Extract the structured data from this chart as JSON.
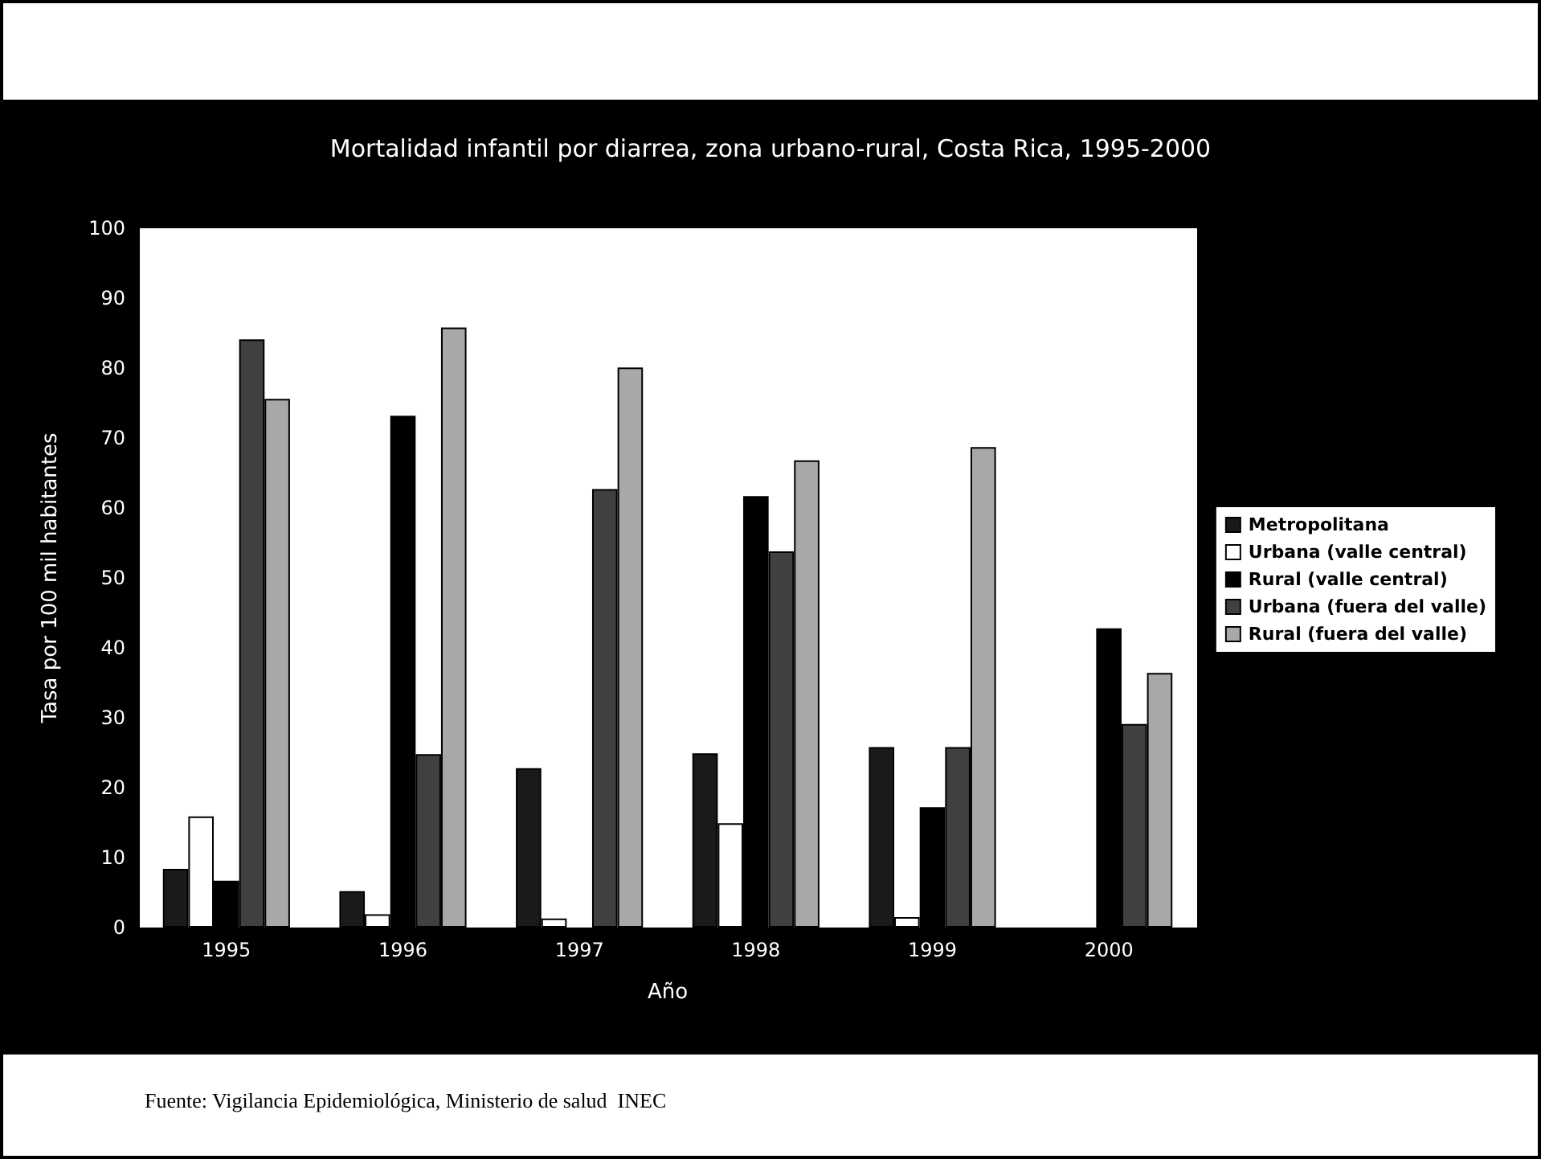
{
  "chart_data": {
    "type": "bar",
    "title": "Mortalidad infantil por diarrea, zona urbano-rural, Costa Rica, 1995-2000",
    "xlabel": "Año",
    "ylabel": "Tasa por 100 mil habitantes",
    "annotations": [
      "Fuente: Vigilancia Epidemiológica, Ministerio de salud  INEC"
    ],
    "categories": [
      "1995",
      "1996",
      "1997",
      "1998",
      "1999",
      "2000"
    ],
    "series": [
      {
        "name": "Metropolitana",
        "color": "#1a1a1a",
        "values": [
          8.4,
          5.2,
          22.8,
          24.9,
          25.8,
          0
        ]
      },
      {
        "name": "Urbana (valle central)",
        "color": "#ffffff",
        "values": [
          15.9,
          1.9,
          1.3,
          14.9,
          1.5,
          0
        ]
      },
      {
        "name": "Rural (valle central)",
        "color": "#000000",
        "values": [
          6.7,
          73.2,
          0,
          61.7,
          17.2,
          42.8
        ]
      },
      {
        "name": "Urbana (fuera del valle)",
        "color": "#404040",
        "values": [
          84.1,
          24.8,
          62.7,
          53.8,
          25.8,
          29.1
        ]
      },
      {
        "name": "Rural (fuera del valle)",
        "color": "#a8a8a8",
        "values": [
          75.6,
          85.8,
          80.1,
          66.8,
          68.7,
          36.4
        ]
      }
    ],
    "ylim": [
      0,
      100
    ],
    "yticks": [
      0,
      10,
      20,
      30,
      40,
      50,
      60,
      70,
      80,
      90,
      100
    ],
    "grid": false,
    "legend": "right"
  }
}
